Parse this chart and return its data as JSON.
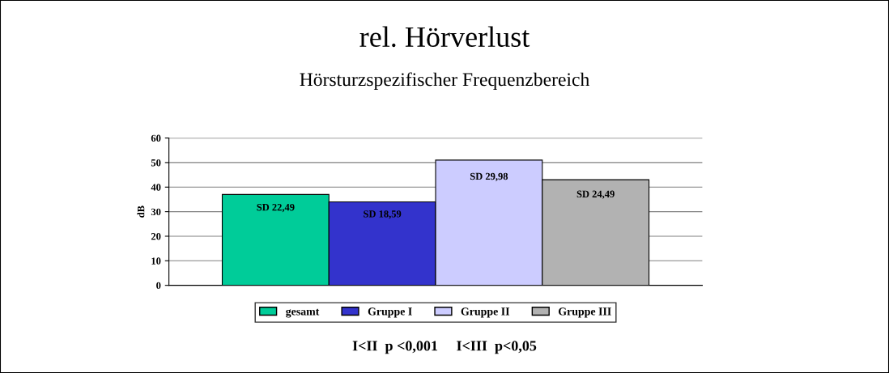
{
  "chart_data": {
    "type": "bar",
    "title": "rel. Hörverlust",
    "subtitle": "Hörsturzspezifischer Frequenzbereich",
    "ylabel": "dB",
    "categories": [
      null
    ],
    "series": [
      {
        "name": "gesamt",
        "color": "#00cc99",
        "values": [
          37
        ],
        "value_labels": [
          "SD 22,49"
        ]
      },
      {
        "name": "Gruppe I",
        "color": "#3333cc",
        "values": [
          34
        ],
        "value_labels": [
          "SD 18,59"
        ]
      },
      {
        "name": "Gruppe II",
        "color": "#ccccff",
        "values": [
          51
        ],
        "value_labels": [
          "SD 29,98"
        ]
      },
      {
        "name": "Gruppe III",
        "color": "#b2b2b2",
        "values": [
          43
        ],
        "value_labels": [
          "SD 24,49"
        ]
      }
    ],
    "ylim": [
      0,
      60
    ],
    "yticks": [
      0,
      10,
      20,
      30,
      40,
      50,
      60
    ],
    "grid": "y",
    "legend": "bottom",
    "annotations": [
      "I<II  p <0,001     I<III  p<0,05"
    ]
  }
}
